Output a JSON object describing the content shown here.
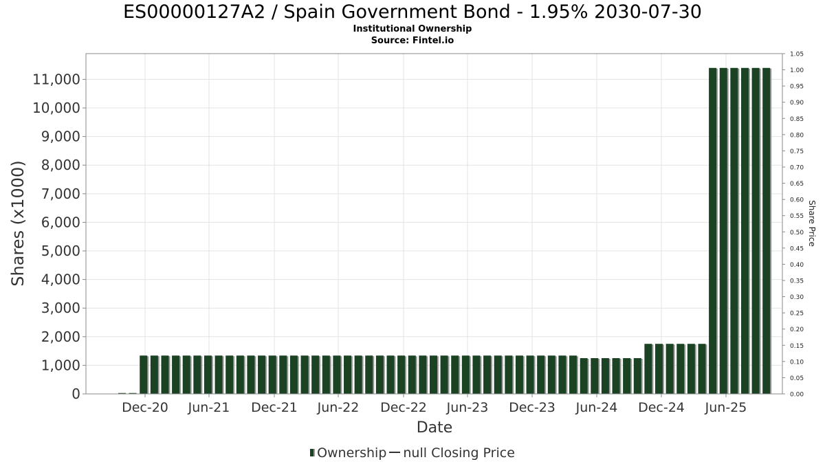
{
  "header": {
    "title": "ES00000127A2 / Spain Government Bond - 1.95% 2030-07-30",
    "subtitle": "Institutional Ownership",
    "source": "Source: Fintel.io"
  },
  "legend": {
    "ownership_label": "Ownership",
    "price_label": "null Closing Price"
  },
  "colors": {
    "bar": "#1a4223",
    "bar_shadow": "#9a9a9a",
    "grid": "#e3e3e3",
    "axis": "#888888"
  },
  "chart_data": {
    "type": "bar",
    "xlabel": "Date",
    "ylabel": "Shares (x1000)",
    "y2label": "Share Price",
    "ylim": [
      0,
      11900
    ],
    "y2lim": [
      0,
      1.05
    ],
    "yticks": [
      0,
      1000,
      2000,
      3000,
      4000,
      5000,
      6000,
      7000,
      8000,
      9000,
      10000,
      11000
    ],
    "yticklabels": [
      "0",
      "1,000",
      "2,000",
      "3,000",
      "4,000",
      "5,000",
      "6,000",
      "7,000",
      "8,000",
      "9,000",
      "10,000",
      "11,000"
    ],
    "y2ticklabels": [
      "0.00",
      "0.05",
      "0.10",
      "0.15",
      "0.20",
      "0.25",
      "0.30",
      "0.35",
      "0.40",
      "0.45",
      "0.50",
      "0.55",
      "0.60",
      "0.65",
      "0.70",
      "0.75",
      "0.80",
      "0.85",
      "0.90",
      "0.95",
      "1.00",
      "1.05"
    ],
    "xticklabels": [
      "Dec-20",
      "Jun-21",
      "Dec-21",
      "Jun-22",
      "Dec-22",
      "Jun-23",
      "Dec-23",
      "Jun-24",
      "Dec-24",
      "Jun-25"
    ],
    "grid": true,
    "legend_position": "bottom-center",
    "series": [
      {
        "name": "Ownership",
        "values": [
          30,
          30,
          1340,
          1340,
          1340,
          1340,
          1340,
          1340,
          1340,
          1340,
          1340,
          1340,
          1340,
          1340,
          1340,
          1340,
          1340,
          1340,
          1340,
          1340,
          1340,
          1340,
          1340,
          1340,
          1340,
          1340,
          1340,
          1340,
          1340,
          1340,
          1340,
          1340,
          1340,
          1340,
          1340,
          1340,
          1340,
          1340,
          1340,
          1340,
          1340,
          1340,
          1340,
          1250,
          1250,
          1250,
          1250,
          1250,
          1250,
          1750,
          1750,
          1750,
          1750,
          1750,
          1750,
          11400,
          11400,
          11400,
          11400,
          11400,
          11400
        ]
      }
    ]
  }
}
